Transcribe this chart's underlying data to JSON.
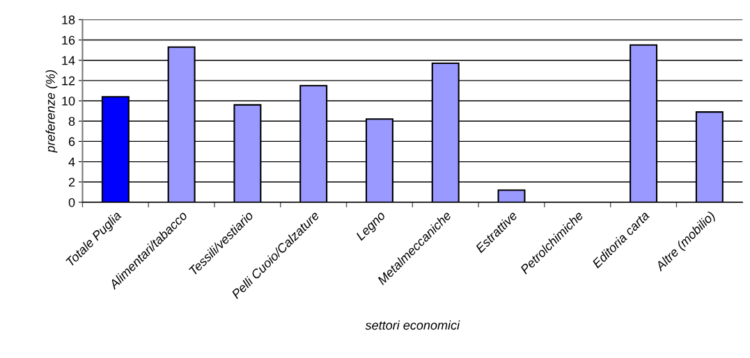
{
  "chart_data": {
    "type": "bar",
    "xlabel": "settori economici",
    "ylabel": "preferenze (%)",
    "categories": [
      "Totale Puglia",
      "Alimentari/tabacco",
      "Tessili/vestiario",
      "Pelli Cuoio/Calzature",
      "Legno",
      "Metalmeccaniche",
      "Estrattive",
      "Petrolchimiche",
      "Editoria carta",
      "Altre (mobilio)"
    ],
    "values": [
      10.4,
      15.3,
      9.6,
      11.5,
      8.2,
      13.7,
      1.2,
      null,
      15.5,
      8.9
    ],
    "colors": [
      "#0000ff",
      "#9999ff",
      "#9999ff",
      "#9999ff",
      "#9999ff",
      "#9999ff",
      "#9999ff",
      "#9999ff",
      "#9999ff",
      "#9999ff"
    ],
    "ylim": [
      0,
      18
    ],
    "yticks": [
      0,
      2,
      4,
      6,
      8,
      10,
      12,
      14,
      16,
      18
    ],
    "grid": "y",
    "legend": false
  }
}
